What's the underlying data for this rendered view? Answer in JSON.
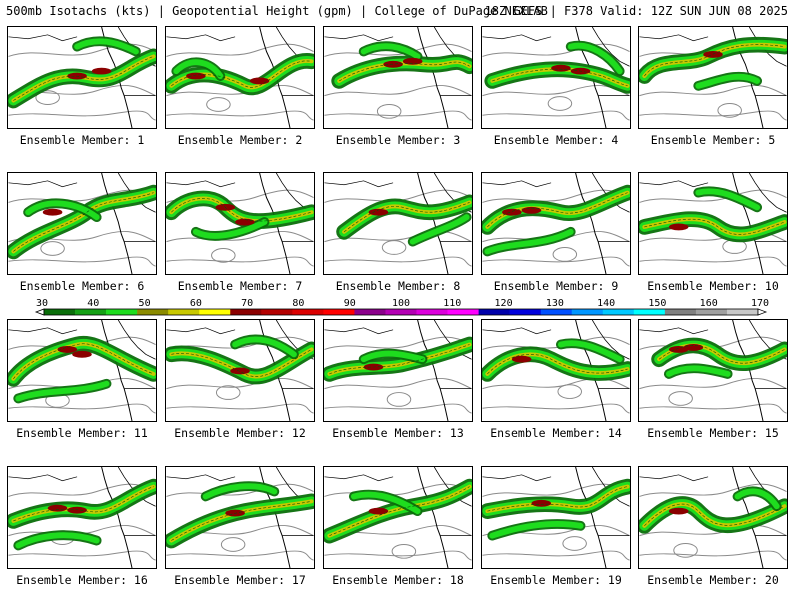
{
  "header": {
    "title": "500mb Isotachs (kts) | Geopotential Height (gpm) | College of DuPage NEXLAB",
    "run_info": "18Z GEFS | F378 Valid: 12Z SUN JUN 08 2025"
  },
  "colorbar": {
    "ticks": [
      "30",
      "40",
      "50",
      "60",
      "70",
      "80",
      "90",
      "100",
      "110",
      "120",
      "130",
      "140",
      "150",
      "160",
      "170"
    ],
    "colors": [
      "#0a6e0a",
      "#14a014",
      "#1edc1e",
      "#8b8b00",
      "#c8c800",
      "#ffff00",
      "#8b0000",
      "#b40000",
      "#dc0000",
      "#ff0000",
      "#8b008b",
      "#b400b4",
      "#dc00dc",
      "#ff00ff",
      "#0000aa",
      "#0000dc",
      "#0050ff",
      "#0096ff",
      "#00c8ff",
      "#00ffff",
      "#808080",
      "#a0a0a0",
      "#c8c8c8"
    ]
  },
  "panels": [
    {
      "label": "Ensemble Member: 1"
    },
    {
      "label": "Ensemble Member: 2"
    },
    {
      "label": "Ensemble Member: 3"
    },
    {
      "label": "Ensemble Member: 4"
    },
    {
      "label": "Ensemble Member: 5"
    },
    {
      "label": "Ensemble Member: 6"
    },
    {
      "label": "Ensemble Member: 7"
    },
    {
      "label": "Ensemble Member: 8"
    },
    {
      "label": "Ensemble Member: 9"
    },
    {
      "label": "Ensemble Member: 10"
    },
    {
      "label": "Ensemble Member: 11"
    },
    {
      "label": "Ensemble Member: 12"
    },
    {
      "label": "Ensemble Member: 13"
    },
    {
      "label": "Ensemble Member: 14"
    },
    {
      "label": "Ensemble Member: 15"
    },
    {
      "label": "Ensemble Member: 16"
    },
    {
      "label": "Ensemble Member: 17"
    },
    {
      "label": "Ensemble Member: 18"
    },
    {
      "label": "Ensemble Member: 19"
    },
    {
      "label": "Ensemble Member: 20"
    }
  ]
}
